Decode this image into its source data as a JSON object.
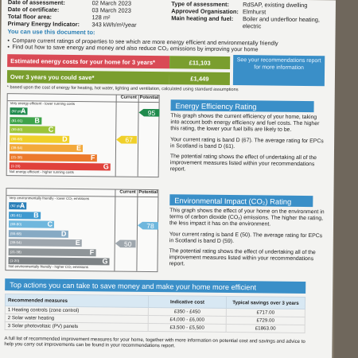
{
  "header": {
    "rows": [
      {
        "k": "Date of assessment:",
        "v": "02 March 2023",
        "k2": "Type of assessment:",
        "v2": "RdSAP, existing dwelling"
      },
      {
        "k": "Date of certificate:",
        "v": "03 March 2023",
        "k2": "Approved Organisation:",
        "v2": "Elmhurst"
      },
      {
        "k": "Total floor area:",
        "v": "128 m²",
        "k2": "Main heating and fuel:",
        "v2": "Boiler and underfloor heating,"
      },
      {
        "k": "Primary Energy Indicator:",
        "v": "343 kWh/m²/year",
        "k2": "",
        "v2": "electric"
      }
    ]
  },
  "intro": {
    "heading": "You can use this document to:",
    "bullets": [
      "Compare current ratings of properties to see which are more energy efficient and environmentally friendly",
      "Find out how to save energy and money and also reduce CO₂ emissions by improving your home"
    ]
  },
  "costs": {
    "estimated_label": "Estimated energy costs for your home for 3 years*",
    "estimated_value": "£11,103",
    "saving_label": "Over 3 years you could save*",
    "saving_value": "£1,449",
    "see_link": "See your recommendations report for more information",
    "note": "* based upon the cost of energy for heating, hot water, lighting and ventilation, calculated using standard assumptions"
  },
  "efficiency_chart": {
    "col_current": "Current",
    "col_potential": "Potential",
    "top_caption": "Very energy efficient - lower running costs",
    "bottom_caption": "Not energy efficient - higher running costs",
    "bands": [
      {
        "range": "(92 plus)",
        "letter": "A",
        "color": "#1f8a4c"
      },
      {
        "range": "(81-91)",
        "letter": "B",
        "color": "#3ea34a"
      },
      {
        "range": "(69-80)",
        "letter": "C",
        "color": "#9cc43a"
      },
      {
        "range": "(55-68)",
        "letter": "D",
        "color": "#f0d02a"
      },
      {
        "range": "(39-54)",
        "letter": "E",
        "color": "#f3a93b"
      },
      {
        "range": "(21-38)",
        "letter": "F",
        "color": "#ec7a2c"
      },
      {
        "range": "(1-20)",
        "letter": "G",
        "color": "#e0413b"
      }
    ],
    "current": "67",
    "potential": "95",
    "current_color": "#f0d02a",
    "potential_color": "#1f8a4c"
  },
  "environment_chart": {
    "col_current": "Current",
    "col_potential": "Potential",
    "top_caption": "Very environmentally friendly - lower CO₂ emissions",
    "bottom_caption": "Not environmentally friendly - higher CO₂ emissions",
    "bands": [
      {
        "range": "(92 plus)",
        "letter": "A",
        "color": "#2a7fb8"
      },
      {
        "range": "(81-91)",
        "letter": "B",
        "color": "#3f9ad0"
      },
      {
        "range": "(69-80)",
        "letter": "C",
        "color": "#6fb7dd"
      },
      {
        "range": "(55-68)",
        "letter": "D",
        "color": "#86aac4"
      },
      {
        "range": "(39-54)",
        "letter": "E",
        "color": "#9ea6ad"
      },
      {
        "range": "(21-38)",
        "letter": "F",
        "color": "#8f9598"
      },
      {
        "range": "(1-20)",
        "letter": "G",
        "color": "#7d8285"
      }
    ],
    "current": "50",
    "potential": "78",
    "current_color": "#9ea6ad",
    "potential_color": "#6fb7dd"
  },
  "efficiency_text": {
    "title": "Energy Efficiency Rating",
    "p1": "This graph shows the current efficiency of your home, taking into account both energy efficiency and fuel costs. The higher this rating, the lower your fuel bills are likely to be.",
    "p2": "Your current rating is band D (67). The average rating for EPCs in Scotland is band D (61).",
    "p3": "The potential rating shows the effect of undertaking all of the improvement measures listed within your recommendations report."
  },
  "environment_text": {
    "title": "Environmental Impact (CO₂) Rating",
    "p1": "This graph shows the effect of your home on the environment in terms of carbon dioxide (CO₂) emissions. The higher the rating, the less impact it has on the environment.",
    "p2": "Your current rating is band E (50). The average rating for EPCs in Scotland is band D (59).",
    "p3": "The potential rating shows the effect of undertaking all of the improvement measures listed within your recommendations report."
  },
  "actions": {
    "title": "Top actions you can take to save money and make your home more efficient",
    "columns": [
      "Recommended measures",
      "Indicative cost",
      "Typical savings over 3 years"
    ],
    "rows": [
      {
        "measure": "1 Heating controls (zone control)",
        "cost": "£350 - £450",
        "saving": "£717.00"
      },
      {
        "measure": "2 Solar water heating",
        "cost": "£4,000 - £6,000",
        "saving": "£729.00"
      },
      {
        "measure": "3 Solar photovoltaic (PV) panels",
        "cost": "£3,500 - £5,500",
        "saving": "£1863.00"
      }
    ],
    "footer": "A full list of recommended improvement measures for your home, together with more information on potential cost and savings and advice to help you carry out improvements can be found in your recommendations report."
  }
}
